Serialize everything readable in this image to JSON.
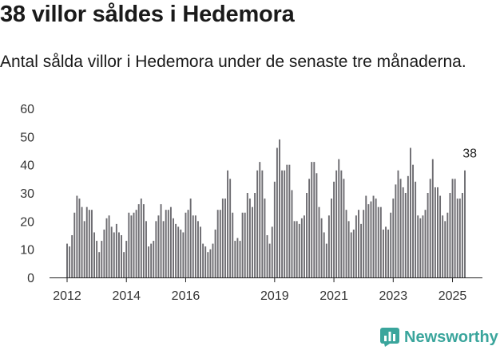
{
  "title": "38 villor såldes i Hedemora",
  "subtitle": "Antal sålda villor i Hedemora under de senaste tre månaderna.",
  "brand": {
    "name": "Newsworthy",
    "icon": "newsworthy-logo-icon",
    "color": "#3aa59c"
  },
  "colors": {
    "bar": "#6d6c71",
    "highlight": "#1f8f86",
    "axis": "#222222"
  },
  "chart_data": {
    "type": "bar",
    "title": "",
    "xlabel": "",
    "ylabel": "",
    "ylim": [
      0,
      60
    ],
    "yticks": [
      0,
      10,
      20,
      30,
      40,
      50,
      60
    ],
    "xticks": [
      {
        "label": "2012",
        "index": 0
      },
      {
        "label": "2014",
        "index": 24
      },
      {
        "label": "2016",
        "index": 48
      },
      {
        "label": "2019",
        "index": 84
      },
      {
        "label": "2021",
        "index": 108
      },
      {
        "label": "2023",
        "index": 132
      },
      {
        "label": "2025",
        "index": 156
      }
    ],
    "start": "2012-01",
    "annotation": {
      "label": "38",
      "value": 38,
      "index": 163
    },
    "values": [
      12,
      11,
      15,
      23,
      29,
      28,
      25,
      20,
      25,
      24,
      24,
      16,
      13,
      9,
      13,
      17,
      21,
      22,
      18,
      16,
      19,
      16,
      15,
      9,
      13,
      23,
      22,
      23,
      24,
      26,
      28,
      26,
      20,
      11,
      12,
      13,
      20,
      22,
      26,
      20,
      24,
      24,
      25,
      21,
      19,
      18,
      17,
      16,
      23,
      24,
      28,
      22,
      22,
      20,
      18,
      12,
      11,
      9,
      10,
      12,
      17,
      24,
      24,
      28,
      28,
      38,
      35,
      23,
      13,
      14,
      13,
      23,
      23,
      30,
      28,
      25,
      30,
      38,
      41,
      38,
      28,
      15,
      12,
      18,
      34,
      46,
      49,
      38,
      38,
      40,
      40,
      31,
      20,
      20,
      19,
      21,
      22,
      30,
      35,
      41,
      41,
      37,
      25,
      21,
      16,
      12,
      22,
      28,
      34,
      38,
      42,
      38,
      35,
      24,
      20,
      16,
      17,
      22,
      24,
      19,
      24,
      29,
      26,
      27,
      29,
      28,
      25,
      25,
      17,
      18,
      17,
      23,
      28,
      33,
      38,
      35,
      32,
      30,
      36,
      46,
      40,
      34,
      22,
      21,
      22,
      24,
      30,
      35,
      42,
      32,
      32,
      29,
      22,
      20,
      23,
      30,
      35,
      35,
      28,
      28,
      30,
      38
    ]
  }
}
